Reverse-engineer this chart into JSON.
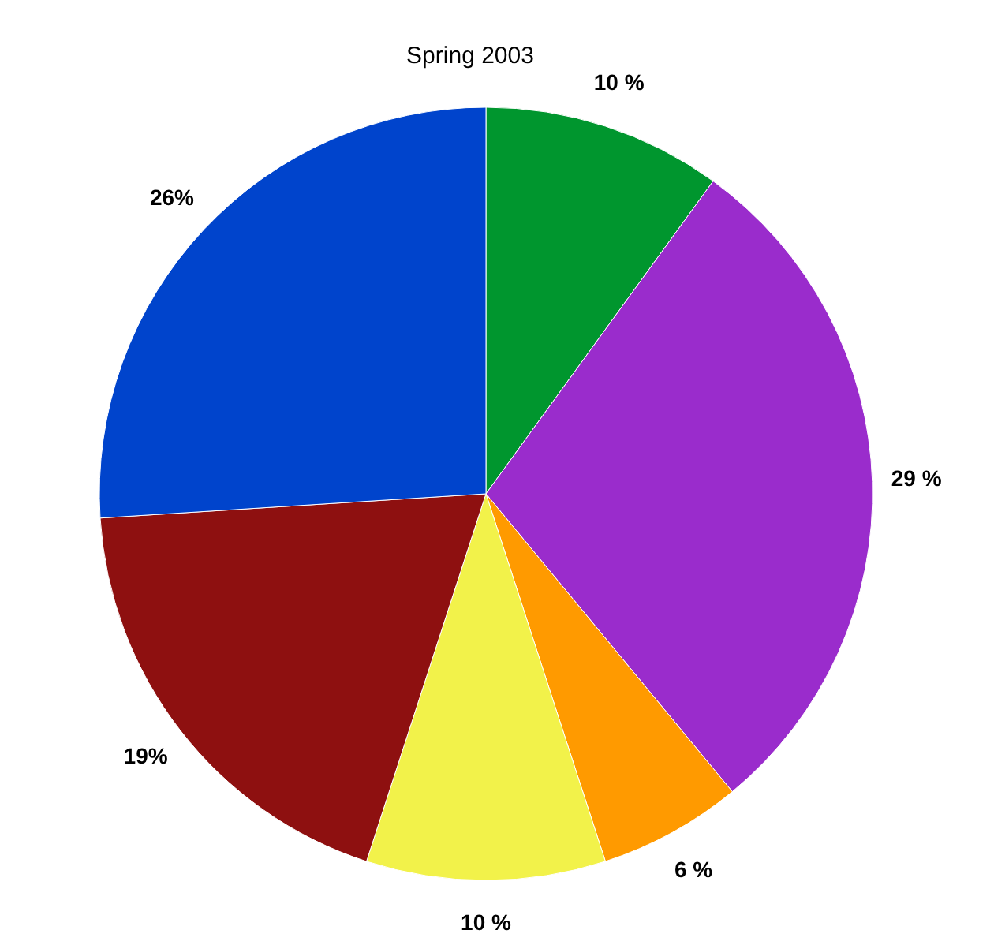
{
  "chart_data": {
    "type": "pie",
    "title": "Spring 2003",
    "categories": [
      null,
      null,
      null,
      null,
      null,
      null
    ],
    "values": [
      10,
      29,
      6,
      10,
      19,
      26
    ],
    "colors": [
      "#00962e",
      "#9a2ccc",
      "#ff9a00",
      "#f2f24a",
      "#8e1010",
      "#0044cc"
    ],
    "value_labels": [
      "10 %",
      "29 %",
      "6 %",
      "10 %",
      "19%",
      "26%"
    ]
  }
}
